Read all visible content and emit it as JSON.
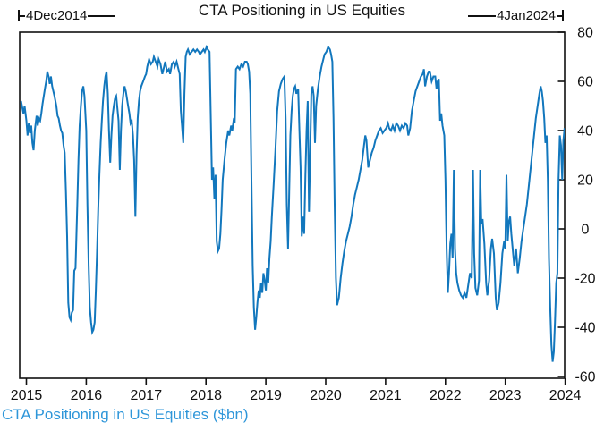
{
  "title": "CTA Positioning in US Equities",
  "annotations": {
    "start_label": "4Dec2014",
    "end_label": "4Jan2024"
  },
  "footer_label": "CTA Positioning in US Equities ($bn)",
  "colors": {
    "line": "#1277BD",
    "axis": "#111111",
    "text": "#111111",
    "footer": "#2E96D9"
  },
  "chart_data": {
    "type": "line",
    "title": "CTA Positioning in US Equities",
    "series_label": "CTA Positioning in US Equities ($bn)",
    "xlabel": "",
    "ylabel": "",
    "x_ticks": [
      2015,
      2016,
      2017,
      2018,
      2019,
      2020,
      2021,
      2022,
      2023,
      2024
    ],
    "y_ticks": [
      80,
      60,
      40,
      20,
      0,
      -20,
      -40,
      -60
    ],
    "xlim": [
      2014.89,
      2023.99
    ],
    "ylim": [
      -60.7,
      80
    ],
    "grid": false,
    "legend_position": "none",
    "y_axis_side": "right",
    "data_start_date": "4Dec2014",
    "data_end_date": "4Jan2024",
    "points": [
      [
        2014.91,
        52
      ],
      [
        2014.95,
        47
      ],
      [
        2014.97,
        50
      ],
      [
        2015.0,
        44
      ],
      [
        2015.02,
        38
      ],
      [
        2015.04,
        43
      ],
      [
        2015.06,
        39
      ],
      [
        2015.08,
        42
      ],
      [
        2015.1,
        35
      ],
      [
        2015.12,
        32
      ],
      [
        2015.14,
        40
      ],
      [
        2015.17,
        46
      ],
      [
        2015.19,
        42
      ],
      [
        2015.21,
        45
      ],
      [
        2015.23,
        44
      ],
      [
        2015.25,
        47
      ],
      [
        2015.27,
        51
      ],
      [
        2015.29,
        54
      ],
      [
        2015.31,
        57
      ],
      [
        2015.33,
        60
      ],
      [
        2015.35,
        64
      ],
      [
        2015.37,
        62
      ],
      [
        2015.39,
        59
      ],
      [
        2015.41,
        62
      ],
      [
        2015.43,
        58
      ],
      [
        2015.45,
        56
      ],
      [
        2015.47,
        54
      ],
      [
        2015.5,
        50
      ],
      [
        2015.52,
        46
      ],
      [
        2015.54,
        45
      ],
      [
        2015.56,
        42
      ],
      [
        2015.58,
        40
      ],
      [
        2015.6,
        39
      ],
      [
        2015.62,
        34
      ],
      [
        2015.64,
        31
      ],
      [
        2015.66,
        15
      ],
      [
        2015.68,
        -3
      ],
      [
        2015.7,
        -30
      ],
      [
        2015.72,
        -36
      ],
      [
        2015.74,
        -37
      ],
      [
        2015.76,
        -34
      ],
      [
        2015.78,
        -33
      ],
      [
        2015.8,
        -17
      ],
      [
        2015.82,
        -16
      ],
      [
        2015.85,
        10
      ],
      [
        2015.87,
        28
      ],
      [
        2015.89,
        42
      ],
      [
        2015.91,
        50
      ],
      [
        2015.93,
        56
      ],
      [
        2015.95,
        58
      ],
      [
        2015.97,
        54
      ],
      [
        2016.0,
        40
      ],
      [
        2016.02,
        10
      ],
      [
        2016.04,
        -15
      ],
      [
        2016.06,
        -32
      ],
      [
        2016.08,
        -38
      ],
      [
        2016.1,
        -42
      ],
      [
        2016.12,
        -41
      ],
      [
        2016.14,
        -38
      ],
      [
        2016.16,
        -25
      ],
      [
        2016.18,
        -10
      ],
      [
        2016.2,
        8
      ],
      [
        2016.22,
        22
      ],
      [
        2016.24,
        35
      ],
      [
        2016.26,
        44
      ],
      [
        2016.28,
        52
      ],
      [
        2016.3,
        58
      ],
      [
        2016.32,
        62
      ],
      [
        2016.34,
        64
      ],
      [
        2016.36,
        55
      ],
      [
        2016.38,
        40
      ],
      [
        2016.4,
        27
      ],
      [
        2016.42,
        38
      ],
      [
        2016.44,
        46
      ],
      [
        2016.46,
        50
      ],
      [
        2016.48,
        53
      ],
      [
        2016.5,
        54
      ],
      [
        2016.52,
        49
      ],
      [
        2016.54,
        44
      ],
      [
        2016.56,
        24
      ],
      [
        2016.58,
        40
      ],
      [
        2016.6,
        50
      ],
      [
        2016.62,
        55
      ],
      [
        2016.64,
        58
      ],
      [
        2016.66,
        56
      ],
      [
        2016.68,
        53
      ],
      [
        2016.7,
        50
      ],
      [
        2016.72,
        47
      ],
      [
        2016.74,
        43
      ],
      [
        2016.76,
        44
      ],
      [
        2016.78,
        38
      ],
      [
        2016.8,
        28
      ],
      [
        2016.82,
        5
      ],
      [
        2016.84,
        30
      ],
      [
        2016.86,
        45
      ],
      [
        2016.88,
        52
      ],
      [
        2016.9,
        56
      ],
      [
        2016.92,
        58
      ],
      [
        2016.95,
        60
      ],
      [
        2016.98,
        62
      ],
      [
        2017.0,
        63
      ],
      [
        2017.02,
        66
      ],
      [
        2017.05,
        69
      ],
      [
        2017.08,
        67
      ],
      [
        2017.11,
        68
      ],
      [
        2017.13,
        70
      ],
      [
        2017.16,
        68
      ],
      [
        2017.19,
        66
      ],
      [
        2017.21,
        69
      ],
      [
        2017.24,
        67
      ],
      [
        2017.27,
        63
      ],
      [
        2017.3,
        66
      ],
      [
        2017.32,
        68
      ],
      [
        2017.35,
        64
      ],
      [
        2017.38,
        65
      ],
      [
        2017.4,
        63
      ],
      [
        2017.43,
        67
      ],
      [
        2017.46,
        68
      ],
      [
        2017.48,
        66
      ],
      [
        2017.51,
        68
      ],
      [
        2017.54,
        65
      ],
      [
        2017.56,
        63
      ],
      [
        2017.58,
        48
      ],
      [
        2017.6,
        42
      ],
      [
        2017.62,
        35
      ],
      [
        2017.64,
        55
      ],
      [
        2017.66,
        70
      ],
      [
        2017.68,
        72
      ],
      [
        2017.7,
        73
      ],
      [
        2017.73,
        71
      ],
      [
        2017.76,
        72
      ],
      [
        2017.79,
        73
      ],
      [
        2017.82,
        72
      ],
      [
        2017.85,
        73
      ],
      [
        2017.88,
        72
      ],
      [
        2017.9,
        71
      ],
      [
        2017.93,
        72
      ],
      [
        2017.96,
        73
      ],
      [
        2017.98,
        72
      ],
      [
        2018.01,
        74
      ],
      [
        2018.03,
        73
      ],
      [
        2018.06,
        72
      ],
      [
        2018.08,
        45
      ],
      [
        2018.1,
        20
      ],
      [
        2018.12,
        25
      ],
      [
        2018.14,
        12
      ],
      [
        2018.16,
        22
      ],
      [
        2018.18,
        -5
      ],
      [
        2018.2,
        -9
      ],
      [
        2018.22,
        -8
      ],
      [
        2018.24,
        -2
      ],
      [
        2018.26,
        8
      ],
      [
        2018.28,
        20
      ],
      [
        2018.31,
        28
      ],
      [
        2018.34,
        35
      ],
      [
        2018.37,
        40
      ],
      [
        2018.39,
        38
      ],
      [
        2018.42,
        42
      ],
      [
        2018.44,
        40
      ],
      [
        2018.46,
        44
      ],
      [
        2018.48,
        43
      ],
      [
        2018.5,
        65
      ],
      [
        2018.53,
        66
      ],
      [
        2018.56,
        65
      ],
      [
        2018.59,
        67
      ],
      [
        2018.62,
        66
      ],
      [
        2018.65,
        68
      ],
      [
        2018.68,
        68
      ],
      [
        2018.7,
        67
      ],
      [
        2018.72,
        64
      ],
      [
        2018.74,
        55
      ],
      [
        2018.76,
        20
      ],
      [
        2018.78,
        -15
      ],
      [
        2018.8,
        -32
      ],
      [
        2018.82,
        -41
      ],
      [
        2018.84,
        -36
      ],
      [
        2018.86,
        -30
      ],
      [
        2018.88,
        -25
      ],
      [
        2018.9,
        -28
      ],
      [
        2018.92,
        -22
      ],
      [
        2018.94,
        -26
      ],
      [
        2018.96,
        -18
      ],
      [
        2018.98,
        -21
      ],
      [
        2019.0,
        -25
      ],
      [
        2019.02,
        -16
      ],
      [
        2019.04,
        -22
      ],
      [
        2019.06,
        -12
      ],
      [
        2019.08,
        -5
      ],
      [
        2019.1,
        5
      ],
      [
        2019.13,
        18
      ],
      [
        2019.16,
        32
      ],
      [
        2019.19,
        48
      ],
      [
        2019.22,
        56
      ],
      [
        2019.25,
        59
      ],
      [
        2019.28,
        61
      ],
      [
        2019.31,
        62
      ],
      [
        2019.33,
        45
      ],
      [
        2019.35,
        10
      ],
      [
        2019.37,
        -8
      ],
      [
        2019.39,
        15
      ],
      [
        2019.41,
        38
      ],
      [
        2019.43,
        48
      ],
      [
        2019.45,
        54
      ],
      [
        2019.47,
        57
      ],
      [
        2019.49,
        58
      ],
      [
        2019.51,
        55
      ],
      [
        2019.54,
        57
      ],
      [
        2019.56,
        40
      ],
      [
        2019.58,
        25
      ],
      [
        2019.6,
        -3
      ],
      [
        2019.62,
        5
      ],
      [
        2019.64,
        -2
      ],
      [
        2019.66,
        22
      ],
      [
        2019.68,
        40
      ],
      [
        2019.7,
        52
      ],
      [
        2019.72,
        7
      ],
      [
        2019.74,
        30
      ],
      [
        2019.76,
        55
      ],
      [
        2019.78,
        58
      ],
      [
        2019.8,
        54
      ],
      [
        2019.82,
        35
      ],
      [
        2019.84,
        50
      ],
      [
        2019.87,
        57
      ],
      [
        2019.9,
        62
      ],
      [
        2019.93,
        66
      ],
      [
        2019.96,
        69
      ],
      [
        2019.98,
        71
      ],
      [
        2020.01,
        72
      ],
      [
        2020.04,
        74
      ],
      [
        2020.07,
        73
      ],
      [
        2020.09,
        71
      ],
      [
        2020.11,
        68
      ],
      [
        2020.13,
        45
      ],
      [
        2020.15,
        10
      ],
      [
        2020.17,
        -20
      ],
      [
        2020.19,
        -31
      ],
      [
        2020.22,
        -28
      ],
      [
        2020.25,
        -20
      ],
      [
        2020.28,
        -14
      ],
      [
        2020.31,
        -9
      ],
      [
        2020.34,
        -5
      ],
      [
        2020.37,
        -2
      ],
      [
        2020.4,
        1
      ],
      [
        2020.43,
        5
      ],
      [
        2020.46,
        10
      ],
      [
        2020.49,
        14
      ],
      [
        2020.52,
        17
      ],
      [
        2020.55,
        20
      ],
      [
        2020.58,
        24
      ],
      [
        2020.61,
        28
      ],
      [
        2020.64,
        34
      ],
      [
        2020.66,
        38
      ],
      [
        2020.68,
        36
      ],
      [
        2020.71,
        25
      ],
      [
        2020.74,
        28
      ],
      [
        2020.77,
        31
      ],
      [
        2020.8,
        33
      ],
      [
        2020.83,
        36
      ],
      [
        2020.86,
        38
      ],
      [
        2020.89,
        40
      ],
      [
        2020.92,
        41
      ],
      [
        2020.95,
        39
      ],
      [
        2020.98,
        40
      ],
      [
        2021.01,
        41
      ],
      [
        2021.04,
        43
      ],
      [
        2021.06,
        41
      ],
      [
        2021.09,
        40
      ],
      [
        2021.12,
        42
      ],
      [
        2021.15,
        40
      ],
      [
        2021.18,
        43
      ],
      [
        2021.21,
        42
      ],
      [
        2021.24,
        40
      ],
      [
        2021.27,
        42
      ],
      [
        2021.3,
        41
      ],
      [
        2021.33,
        43
      ],
      [
        2021.36,
        42
      ],
      [
        2021.38,
        38
      ],
      [
        2021.41,
        41
      ],
      [
        2021.44,
        48
      ],
      [
        2021.47,
        52
      ],
      [
        2021.5,
        56
      ],
      [
        2021.53,
        58
      ],
      [
        2021.56,
        60
      ],
      [
        2021.59,
        62
      ],
      [
        2021.62,
        63
      ],
      [
        2021.64,
        65
      ],
      [
        2021.66,
        58
      ],
      [
        2021.69,
        62
      ],
      [
        2021.72,
        64
      ],
      [
        2021.74,
        64
      ],
      [
        2021.77,
        60
      ],
      [
        2021.8,
        62
      ],
      [
        2021.83,
        62
      ],
      [
        2021.85,
        57
      ],
      [
        2021.87,
        60
      ],
      [
        2021.89,
        61
      ],
      [
        2021.91,
        44
      ],
      [
        2021.93,
        47
      ],
      [
        2021.95,
        42
      ],
      [
        2021.98,
        38
      ],
      [
        2022.0,
        20
      ],
      [
        2022.02,
        -8
      ],
      [
        2022.04,
        -26
      ],
      [
        2022.06,
        -18
      ],
      [
        2022.08,
        -6
      ],
      [
        2022.1,
        -2
      ],
      [
        2022.12,
        -12
      ],
      [
        2022.14,
        24
      ],
      [
        2022.16,
        -8
      ],
      [
        2022.18,
        -18
      ],
      [
        2022.2,
        -22
      ],
      [
        2022.23,
        -25
      ],
      [
        2022.26,
        -27
      ],
      [
        2022.29,
        -28
      ],
      [
        2022.32,
        -26
      ],
      [
        2022.35,
        -28
      ],
      [
        2022.38,
        -23
      ],
      [
        2022.41,
        -18
      ],
      [
        2022.44,
        -20
      ],
      [
        2022.46,
        24
      ],
      [
        2022.48,
        -10
      ],
      [
        2022.5,
        -24
      ],
      [
        2022.53,
        -27
      ],
      [
        2022.56,
        -21
      ],
      [
        2022.58,
        24
      ],
      [
        2022.6,
        2
      ],
      [
        2022.62,
        4
      ],
      [
        2022.65,
        -6
      ],
      [
        2022.68,
        -22
      ],
      [
        2022.7,
        -27
      ],
      [
        2022.73,
        -21
      ],
      [
        2022.76,
        -8
      ],
      [
        2022.78,
        -4
      ],
      [
        2022.81,
        -10
      ],
      [
        2022.84,
        -28
      ],
      [
        2022.86,
        -33
      ],
      [
        2022.89,
        -30
      ],
      [
        2022.92,
        -22
      ],
      [
        2022.95,
        -10
      ],
      [
        2022.98,
        -5
      ],
      [
        2023.0,
        -8
      ],
      [
        2023.02,
        22
      ],
      [
        2023.04,
        -5
      ],
      [
        2023.06,
        3
      ],
      [
        2023.08,
        5
      ],
      [
        2023.1,
        -2
      ],
      [
        2023.13,
        -10
      ],
      [
        2023.15,
        -15
      ],
      [
        2023.18,
        -8
      ],
      [
        2023.21,
        -18
      ],
      [
        2023.24,
        -12
      ],
      [
        2023.27,
        -5
      ],
      [
        2023.3,
        0
      ],
      [
        2023.33,
        5
      ],
      [
        2023.36,
        10
      ],
      [
        2023.39,
        17
      ],
      [
        2023.42,
        24
      ],
      [
        2023.45,
        31
      ],
      [
        2023.48,
        38
      ],
      [
        2023.51,
        45
      ],
      [
        2023.54,
        50
      ],
      [
        2023.57,
        55
      ],
      [
        2023.59,
        58
      ],
      [
        2023.61,
        56
      ],
      [
        2023.63,
        52
      ],
      [
        2023.65,
        45
      ],
      [
        2023.67,
        35
      ],
      [
        2023.69,
        38
      ],
      [
        2023.71,
        20
      ],
      [
        2023.73,
        -12
      ],
      [
        2023.75,
        -32
      ],
      [
        2023.77,
        -47
      ],
      [
        2023.79,
        -54
      ],
      [
        2023.81,
        -50
      ],
      [
        2023.83,
        -38
      ],
      [
        2023.85,
        -22
      ],
      [
        2023.87,
        -18
      ],
      [
        2023.89,
        20
      ],
      [
        2023.91,
        38
      ],
      [
        2023.93,
        34
      ],
      [
        2023.95,
        20
      ],
      [
        2023.97,
        36
      ],
      [
        2023.99,
        41
      ]
    ]
  }
}
